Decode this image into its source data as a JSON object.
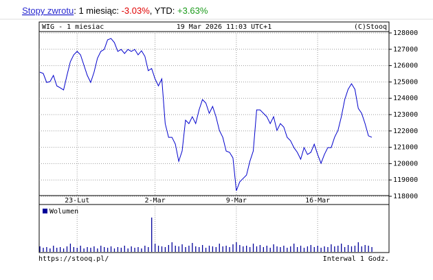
{
  "header": {
    "link": "Stopy zwrotu",
    "sep1": ": 1 miesiąc: ",
    "month": "-3.03%",
    "sep2": ", YTD: ",
    "ytd": "+3.63%"
  },
  "chart_data": [
    {
      "type": "line",
      "title": "WIG - 1 miesiac",
      "subtitle": "19 Mar 2026 11:03 UTC+1",
      "credit": "(C)Stooq",
      "categories": [
        null,
        null,
        null,
        null,
        null,
        null,
        null,
        null,
        null,
        null,
        null,
        "23-Lut",
        null,
        null,
        null,
        null,
        null,
        null,
        null,
        null,
        null,
        null,
        null,
        null,
        null,
        null,
        null,
        null,
        null,
        null,
        null,
        null,
        null,
        null,
        "2-Mar",
        null,
        null,
        null,
        null,
        null,
        null,
        null,
        null,
        null,
        null,
        null,
        null,
        null,
        null,
        null,
        null,
        null,
        null,
        null,
        null,
        null,
        null,
        null,
        "9-Mar",
        null,
        null,
        null,
        null,
        null,
        null,
        null,
        null,
        null,
        null,
        null,
        null,
        null,
        null,
        null,
        null,
        null,
        null,
        null,
        null,
        null,
        null,
        null,
        "16-Mar",
        null,
        null,
        null,
        null,
        null,
        null,
        null,
        null,
        null,
        null,
        null,
        null,
        null,
        null,
        null,
        null
      ],
      "values": [
        125600,
        125520,
        124970,
        125020,
        125400,
        124760,
        124640,
        124510,
        125400,
        126240,
        126660,
        126870,
        126660,
        126030,
        125400,
        124970,
        125600,
        126450,
        126870,
        126990,
        127580,
        127660,
        127410,
        126870,
        126990,
        126740,
        126990,
        126870,
        126990,
        126660,
        126910,
        126570,
        125690,
        125820,
        125190,
        124760,
        125190,
        122450,
        121610,
        121610,
        121190,
        120140,
        120770,
        122660,
        122450,
        122870,
        122450,
        123290,
        123920,
        123710,
        123080,
        123500,
        122870,
        122030,
        121610,
        120770,
        120690,
        120350,
        118340,
        118880,
        119090,
        119300,
        120140,
        120770,
        123290,
        123290,
        123080,
        122870,
        122450,
        122870,
        122030,
        122450,
        122240,
        121610,
        121400,
        120980,
        120690,
        120270,
        120980,
        120560,
        120690,
        121190,
        120560,
        120020,
        120560,
        120980,
        120980,
        121610,
        122030,
        122870,
        123920,
        124550,
        124890,
        124550,
        123380,
        123080,
        122450,
        121700,
        121610
      ],
      "color": "#0000cc",
      "ylim": [
        118000,
        128000
      ],
      "yticks": [
        118000,
        119000,
        120000,
        121000,
        122000,
        123000,
        124000,
        125000,
        126000,
        127000,
        128000
      ],
      "grid": true
    },
    {
      "type": "bar",
      "series": [
        {
          "name": "Wolumen",
          "color": "#000099",
          "values": [
            8,
            6,
            7,
            5,
            9,
            6,
            7,
            5,
            8,
            12,
            7,
            6,
            9,
            5,
            7,
            6,
            8,
            5,
            9,
            7,
            6,
            8,
            5,
            7,
            6,
            9,
            5,
            8,
            6,
            7,
            5,
            9,
            7,
            50,
            12,
            9,
            8,
            7,
            10,
            14,
            9,
            8,
            11,
            7,
            9,
            13,
            8,
            7,
            10,
            6,
            9,
            8,
            7,
            12,
            8,
            9,
            7,
            11,
            14,
            10,
            8,
            9,
            7,
            12,
            8,
            10,
            7,
            9,
            6,
            11,
            8,
            7,
            9,
            6,
            8,
            12,
            7,
            9,
            6,
            8,
            10,
            7,
            9,
            6,
            8,
            7,
            11,
            8,
            9,
            12,
            7,
            10,
            8,
            9,
            14,
            8,
            10,
            9,
            7
          ]
        }
      ]
    }
  ],
  "footer": {
    "source": "https://stooq.pl/",
    "interval": "Interwal 1 Godz."
  }
}
